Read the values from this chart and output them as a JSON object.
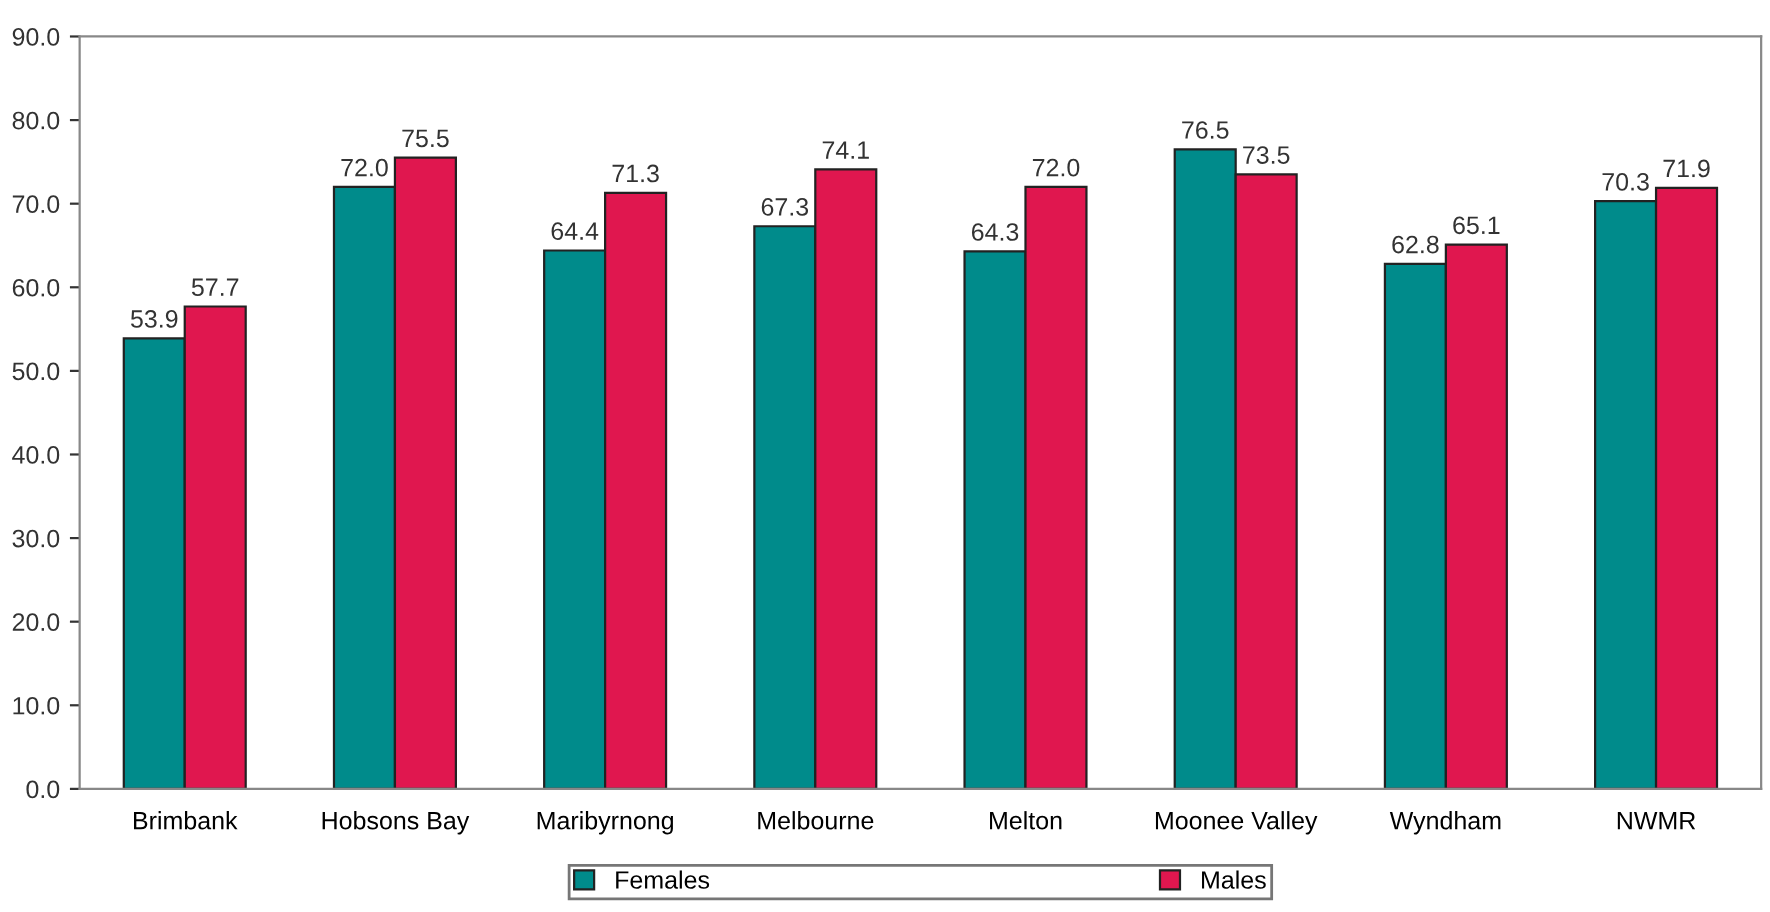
{
  "chart_data": {
    "type": "bar",
    "categories": [
      "Brimbank",
      "Hobsons Bay",
      "Maribyrnong",
      "Melbourne",
      "Melton",
      "Moonee Valley",
      "Wyndham",
      "NWMR"
    ],
    "series": [
      {
        "name": "Females",
        "color": "#008b8b",
        "values": [
          53.9,
          72.0,
          64.4,
          67.3,
          64.3,
          76.5,
          62.8,
          70.3
        ],
        "value_labels": [
          "53.9",
          "72.0",
          "64.4",
          "67.3",
          "64.3",
          "76.5",
          "62.8",
          "70.3"
        ]
      },
      {
        "name": "Males",
        "color": "#e0174f",
        "values": [
          57.7,
          75.5,
          71.3,
          74.1,
          72.0,
          73.5,
          65.1,
          71.9
        ],
        "value_labels": [
          "57.7",
          "75.5",
          "71.3",
          "74.1",
          "72.0",
          "73.5",
          "65.1",
          "71.9"
        ]
      }
    ],
    "ylim": [
      0,
      90
    ],
    "yticks": [
      {
        "value": 0,
        "label": "0.0"
      },
      {
        "value": 10,
        "label": "10.0"
      },
      {
        "value": 20,
        "label": "20.0"
      },
      {
        "value": 30,
        "label": "30.0"
      },
      {
        "value": 40,
        "label": "40.0"
      },
      {
        "value": 50,
        "label": "50.0"
      },
      {
        "value": 60,
        "label": "60.0"
      },
      {
        "value": 70,
        "label": "70.0"
      },
      {
        "value": 80,
        "label": "80.0"
      },
      {
        "value": 90,
        "label": "90.0"
      }
    ],
    "grid": false,
    "legend": "bottom"
  }
}
